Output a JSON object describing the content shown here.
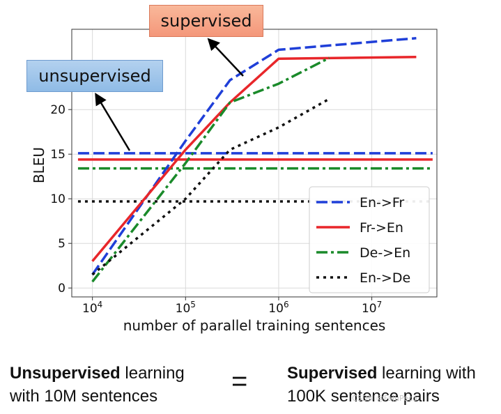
{
  "chart_data": {
    "type": "line",
    "xlabel": "number of parallel training sentences",
    "ylabel": "BLEU",
    "xscale": "log",
    "xlim": [
      6000,
      50000000
    ],
    "ylim": [
      -1,
      29
    ],
    "y_ticks": [
      0,
      5,
      10,
      15,
      20
    ],
    "x_ticks": [
      10000,
      100000,
      1000000,
      10000000
    ],
    "x_tick_labels": [
      {
        "base": "10",
        "exp": "4"
      },
      {
        "base": "10",
        "exp": "5"
      },
      {
        "base": "10",
        "exp": "6"
      },
      {
        "base": "10",
        "exp": "7"
      }
    ],
    "grid": true,
    "legend_position": "bottom-right",
    "series": [
      {
        "name": "En->Fr",
        "color": "#1f3fd8",
        "style": "dashed",
        "x": [
          10000,
          100000,
          300000,
          1000000,
          30000000
        ],
        "y": [
          1.5,
          16.5,
          23.3,
          26.7,
          28.0
        ],
        "unsupervised_level": 15.1
      },
      {
        "name": "Fr->En",
        "color": "#e8262a",
        "style": "solid",
        "x": [
          10000,
          100000,
          300000,
          1000000,
          30000000
        ],
        "y": [
          3.0,
          15.5,
          20.8,
          25.7,
          25.9
        ],
        "unsupervised_level": 14.4
      },
      {
        "name": "De->En",
        "color": "#1a8a2a",
        "style": "dashdot",
        "x": [
          10000,
          100000,
          300000,
          1000000,
          3500000
        ],
        "y": [
          0.7,
          14.0,
          20.8,
          22.9,
          25.8
        ],
        "unsupervised_level": 13.4
      },
      {
        "name": "En->De",
        "color": "#111111",
        "style": "dotted",
        "x": [
          10000,
          100000,
          300000,
          1000000,
          3500000
        ],
        "y": [
          1.5,
          10.0,
          15.5,
          18.0,
          21.2
        ],
        "unsupervised_level": 9.7
      }
    ]
  },
  "callouts": {
    "supervised": "supervised",
    "unsupervised": "unsupervised"
  },
  "caption": {
    "left_bold": "Unsupervised",
    "left_rest_line1": " learning",
    "left_line2": "with 10M sentences",
    "equals": "=",
    "right_bold": "Supervised",
    "right_rest_line1": " learning with",
    "right_line2": "100K sentence pairs"
  },
  "watermark": "CSDN @FajuPeco"
}
